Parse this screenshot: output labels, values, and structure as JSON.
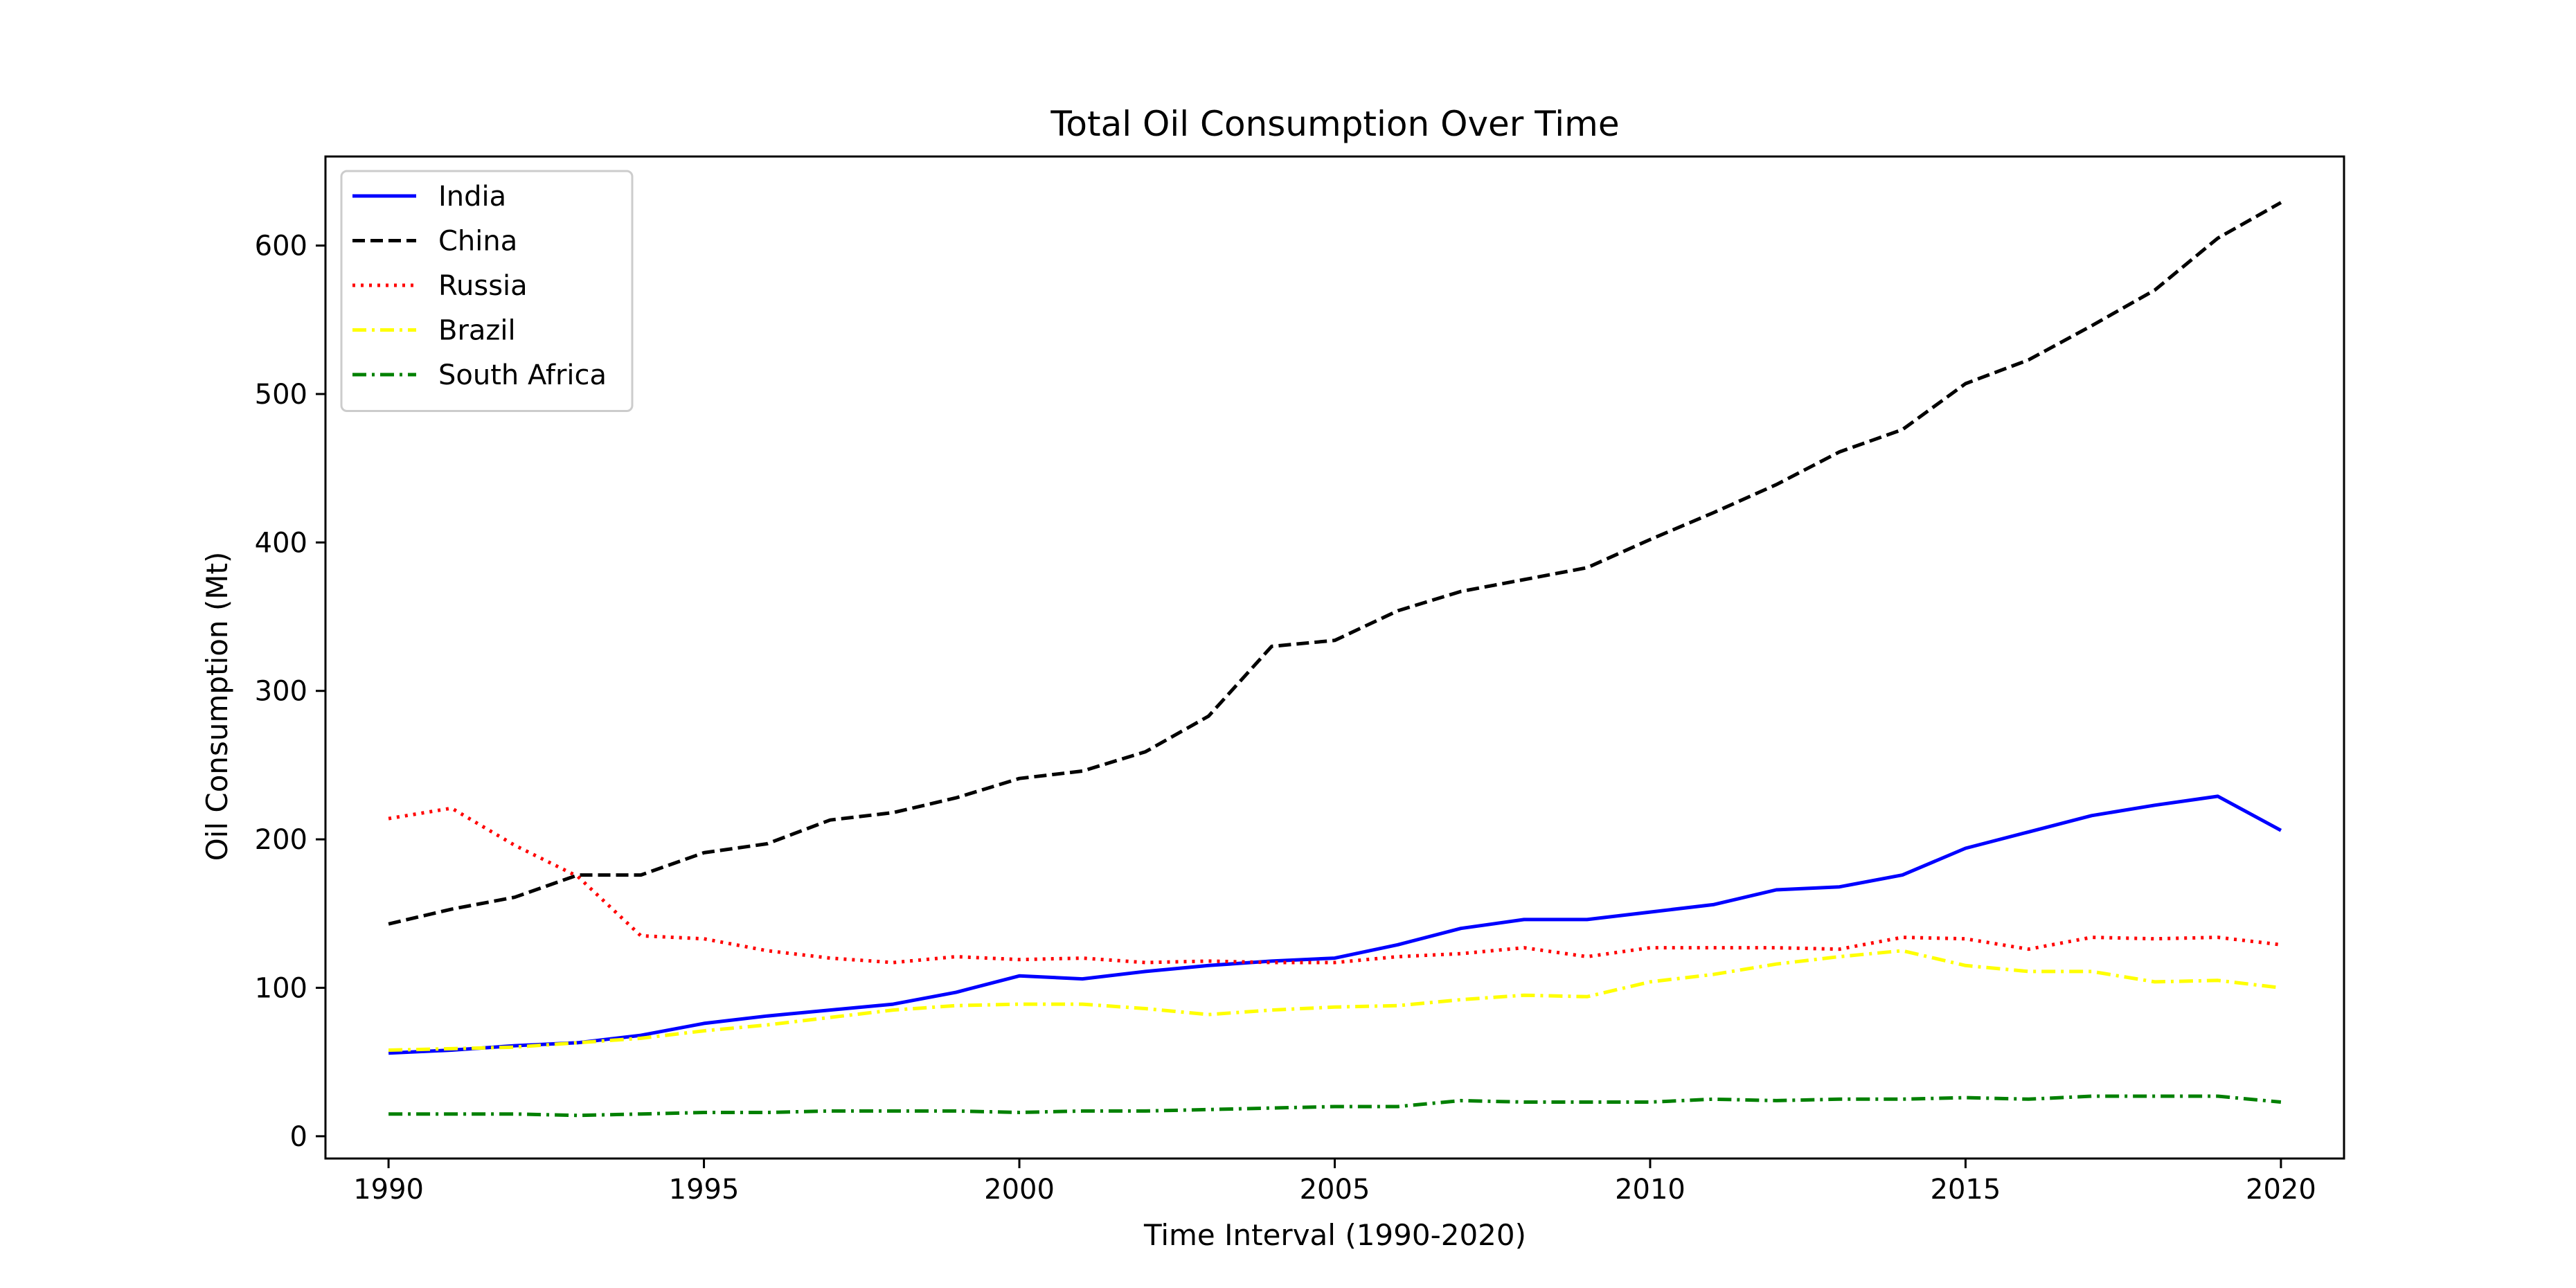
{
  "chart_data": {
    "type": "line",
    "title": "Total Oil Consumption Over Time",
    "xlabel": "Time Interval (1990-2020)",
    "ylabel": "Oil Consumption (Mt)",
    "xlim": [
      1989,
      2021
    ],
    "ylim": [
      -15,
      660
    ],
    "xticks": [
      1990,
      1995,
      2000,
      2005,
      2010,
      2015,
      2020
    ],
    "yticks": [
      0,
      100,
      200,
      300,
      400,
      500,
      600
    ],
    "grid": false,
    "legend_position": "top-left",
    "x": [
      1990,
      1991,
      1992,
      1993,
      1994,
      1995,
      1996,
      1997,
      1998,
      1999,
      2000,
      2001,
      2002,
      2003,
      2004,
      2005,
      2006,
      2007,
      2008,
      2009,
      2010,
      2011,
      2012,
      2013,
      2014,
      2015,
      2016,
      2017,
      2018,
      2019,
      2020
    ],
    "series": [
      {
        "name": "India",
        "color": "#0000ff",
        "style": "solid",
        "values": [
          56,
          58,
          61,
          63,
          68,
          76,
          81,
          85,
          89,
          97,
          108,
          106,
          111,
          115,
          118,
          120,
          129,
          140,
          146,
          146,
          151,
          156,
          166,
          168,
          176,
          194,
          205,
          216,
          223,
          229,
          206
        ]
      },
      {
        "name": "China",
        "color": "#000000",
        "style": "dashed",
        "values": [
          143,
          153,
          161,
          176,
          176,
          191,
          197,
          213,
          218,
          228,
          241,
          246,
          259,
          283,
          330,
          334,
          354,
          367,
          375,
          383,
          402,
          420,
          439,
          461,
          476,
          507,
          523,
          546,
          570,
          605,
          629
        ]
      },
      {
        "name": "Russia",
        "color": "#ff0000",
        "style": "dotted",
        "values": [
          214,
          221,
          196,
          175,
          135,
          133,
          125,
          120,
          117,
          121,
          119,
          120,
          117,
          118,
          117,
          117,
          121,
          123,
          127,
          121,
          127,
          127,
          127,
          126,
          134,
          133,
          126,
          134,
          133,
          134,
          129
        ]
      },
      {
        "name": "Brazil",
        "color": "#ffff00",
        "style": "dashdot",
        "values": [
          58,
          59,
          60,
          63,
          66,
          71,
          75,
          80,
          85,
          88,
          89,
          89,
          86,
          82,
          85,
          87,
          88,
          92,
          95,
          94,
          104,
          109,
          116,
          121,
          125,
          115,
          111,
          111,
          104,
          105,
          100
        ]
      },
      {
        "name": "South Africa",
        "color": "#008000",
        "style": "dashdot",
        "values": [
          15,
          15,
          15,
          14,
          15,
          16,
          16,
          17,
          17,
          17,
          16,
          17,
          17,
          18,
          19,
          20,
          20,
          24,
          23,
          23,
          23,
          25,
          24,
          25,
          25,
          26,
          25,
          27,
          27,
          27,
          23
        ]
      }
    ]
  }
}
